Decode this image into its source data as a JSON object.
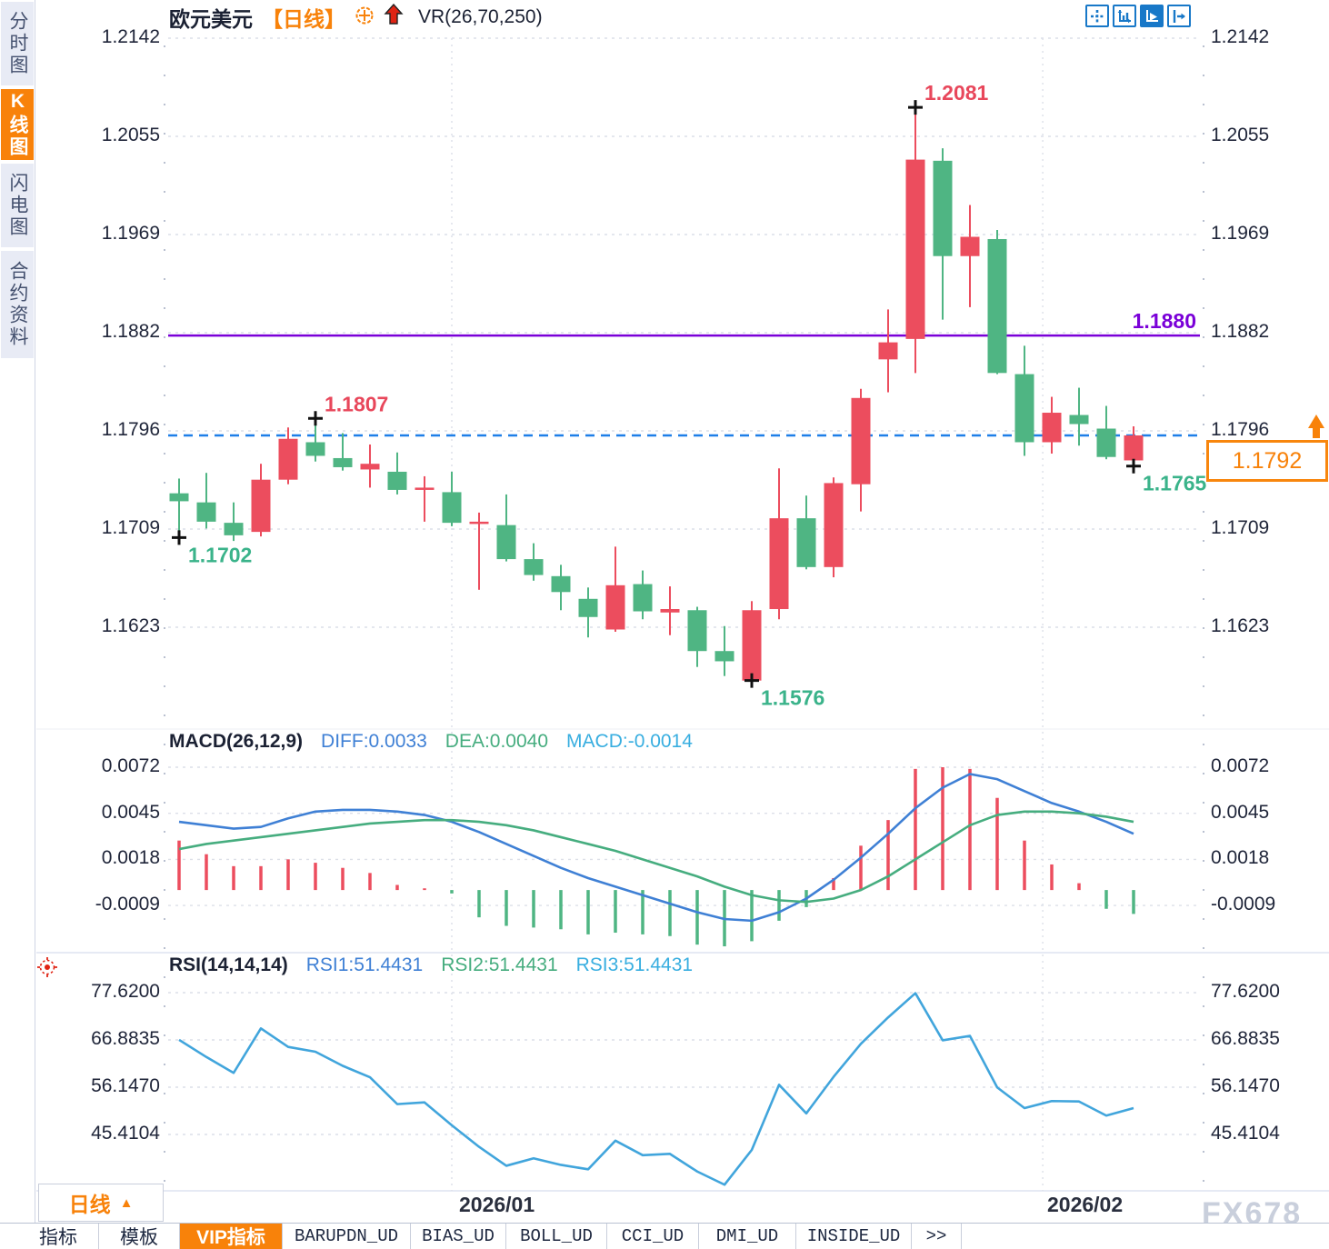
{
  "header": {
    "symbol": "欧元美元",
    "period_tag": "【日线】",
    "vr_label": "VR(26,70,250)"
  },
  "toolbar": {
    "icons": [
      "move-crosshair",
      "axis-scale",
      "axis-play",
      "exit-panel"
    ],
    "active_icon": "axis-play"
  },
  "sidebar": {
    "items": [
      {
        "label": "分时图",
        "active": false
      },
      {
        "label": "K线图",
        "active": true
      },
      {
        "label": "闪电图",
        "active": false
      },
      {
        "label": "合约资料",
        "active": false
      }
    ]
  },
  "colors": {
    "up": "#ec4d5e",
    "down": "#4fb583",
    "accent_orange": "#f8820a",
    "diff_blue": "#3f80d5",
    "dea_green": "#46ad7f",
    "macd_cyan": "#38aee0",
    "rsi_line": "#41a5dc",
    "purple_level": "#7a00d8",
    "current_price_line": "#1e7fe8",
    "toolbar_blue": "#1878c8",
    "high_label": "#e8475b",
    "low_label": "#3ab38a",
    "marker": "#111111",
    "grid": "#dcdfe8"
  },
  "current_price": {
    "display": "1.1792",
    "price": 1.1792
  },
  "x_axis": {
    "gridlines": [
      {
        "index": 10.0,
        "label": "2026/01"
      },
      {
        "index": 31.67,
        "label": "2026/02"
      }
    ]
  },
  "chart_data": [
    {
      "type": "candlestick",
      "title": "欧元美元 日线 (EUR/USD daily)",
      "y_tick_labels": [
        "1.2142",
        "1.2055",
        "1.1969",
        "1.1882",
        "1.1796",
        "1.1709",
        "1.1623"
      ],
      "y_ticks": [
        1.2142,
        1.2055,
        1.1969,
        1.1882,
        1.1796,
        1.1709,
        1.1623
      ],
      "level_line": {
        "value": 1.188,
        "label": "1.1880"
      },
      "candles": [
        [
          1.1741,
          1.1754,
          1.1702,
          1.1734
        ],
        [
          1.1733,
          1.1759,
          1.171,
          1.1716
        ],
        [
          1.1715,
          1.1733,
          1.1699,
          1.1704
        ],
        [
          1.1707,
          1.1767,
          1.1703,
          1.1753
        ],
        [
          1.1753,
          1.1799,
          1.1749,
          1.1789
        ],
        [
          1.1786,
          1.1807,
          1.1769,
          1.1774
        ],
        [
          1.1772,
          1.1794,
          1.1761,
          1.1764
        ],
        [
          1.1762,
          1.1784,
          1.1746,
          1.1767
        ],
        [
          1.176,
          1.1777,
          1.174,
          1.1744
        ],
        [
          1.1744,
          1.1756,
          1.1716,
          1.1746
        ],
        [
          1.1742,
          1.176,
          1.1712,
          1.1715
        ],
        [
          1.1714,
          1.1724,
          1.1656,
          1.1716
        ],
        [
          1.1713,
          1.174,
          1.1681,
          1.1683
        ],
        [
          1.1683,
          1.1697,
          1.1664,
          1.1669
        ],
        [
          1.1668,
          1.1678,
          1.1638,
          1.1654
        ],
        [
          1.1648,
          1.1658,
          1.1614,
          1.1632
        ],
        [
          1.1621,
          1.1694,
          1.1619,
          1.166
        ],
        [
          1.1661,
          1.1673,
          1.163,
          1.1637
        ],
        [
          1.1636,
          1.1659,
          1.1616,
          1.1639
        ],
        [
          1.1638,
          1.1641,
          1.1588,
          1.1602
        ],
        [
          1.1602,
          1.1624,
          1.158,
          1.1593
        ],
        [
          1.1576,
          1.1646,
          1.1576,
          1.1638
        ],
        [
          1.1639,
          1.1763,
          1.163,
          1.1719
        ],
        [
          1.1719,
          1.1739,
          1.1674,
          1.1676
        ],
        [
          1.1676,
          1.1755,
          1.1667,
          1.175
        ],
        [
          1.1749,
          1.1833,
          1.1725,
          1.1825
        ],
        [
          1.1859,
          1.1903,
          1.183,
          1.1874
        ],
        [
          1.1877,
          1.2081,
          1.1847,
          1.2035
        ],
        [
          1.2034,
          1.2045,
          1.1894,
          1.195
        ],
        [
          1.195,
          1.1995,
          1.1905,
          1.1967
        ],
        [
          1.1965,
          1.1973,
          1.1846,
          1.1847
        ],
        [
          1.1846,
          1.1871,
          1.1774,
          1.1786
        ],
        [
          1.1786,
          1.1826,
          1.1776,
          1.1812
        ],
        [
          1.181,
          1.1834,
          1.1783,
          1.1802
        ],
        [
          1.1798,
          1.1818,
          1.1771,
          1.1773
        ],
        [
          1.177,
          1.18,
          1.1765,
          1.1792
        ]
      ],
      "annotations": [
        {
          "candle": 0,
          "price": 1.1702,
          "text": "1.1702",
          "kind": "low",
          "placement": "below"
        },
        {
          "candle": 5,
          "price": 1.1807,
          "text": "1.1807",
          "kind": "high",
          "placement": "above"
        },
        {
          "candle": 21,
          "price": 1.1576,
          "text": "1.1576",
          "kind": "low",
          "placement": "below"
        },
        {
          "candle": 27,
          "price": 1.2081,
          "text": "1.2081",
          "kind": "high",
          "placement": "above"
        },
        {
          "candle": 35,
          "price": 1.1765,
          "text": "1.1765",
          "kind": "low",
          "placement": "below"
        }
      ]
    },
    {
      "type": "bar",
      "name": "MACD",
      "params": "MACD(26,12,9)",
      "readouts": [
        {
          "text": "DIFF:0.0033",
          "color_key": "diff_blue"
        },
        {
          "text": "DEA:0.0040",
          "color_key": "dea_green"
        },
        {
          "text": "MACD:-0.0014",
          "color_key": "macd_cyan"
        }
      ],
      "y_tick_labels": [
        "0.0072",
        "0.0045",
        "0.0018",
        "-0.0009"
      ],
      "y_ticks": [
        0.0072,
        0.0045,
        0.0018,
        -0.0009
      ],
      "histogram": [
        0.0029,
        0.0021,
        0.0014,
        0.0014,
        0.0018,
        0.0016,
        0.0013,
        0.001,
        0.0003,
        0.0001,
        -0.0002,
        -0.0016,
        -0.0021,
        -0.0022,
        -0.0023,
        -0.0026,
        -0.0025,
        -0.0026,
        -0.0027,
        -0.0032,
        -0.0033,
        -0.003,
        -0.0018,
        -0.001,
        0.0007,
        0.0026,
        0.0041,
        0.0071,
        0.0072,
        0.0071,
        0.0054,
        0.0029,
        0.0015,
        0.0004,
        -0.0011,
        -0.0014
      ],
      "series": [
        {
          "name": "DIFF",
          "values": [
            0.004,
            0.0038,
            0.0036,
            0.0037,
            0.0042,
            0.0046,
            0.0047,
            0.0047,
            0.0046,
            0.0044,
            0.004,
            0.0034,
            0.0027,
            0.002,
            0.0013,
            0.0007,
            0.0002,
            -0.0003,
            -0.0008,
            -0.0013,
            -0.0017,
            -0.0018,
            -0.0013,
            -0.0005,
            0.0006,
            0.0019,
            0.0033,
            0.0048,
            0.006,
            0.0068,
            0.0065,
            0.0058,
            0.0051,
            0.0046,
            0.004,
            0.0033
          ]
        },
        {
          "name": "DEA",
          "values": [
            0.0024,
            0.0027,
            0.0029,
            0.0031,
            0.0033,
            0.0035,
            0.0037,
            0.0039,
            0.004,
            0.0041,
            0.0041,
            0.004,
            0.0038,
            0.0035,
            0.0031,
            0.0027,
            0.0023,
            0.0018,
            0.0013,
            0.0008,
            0.0002,
            -0.0003,
            -0.0006,
            -0.0007,
            -0.0005,
            0.0,
            0.0008,
            0.0018,
            0.0028,
            0.0038,
            0.0044,
            0.0046,
            0.0046,
            0.0045,
            0.0043,
            0.004
          ]
        }
      ]
    },
    {
      "type": "line",
      "name": "RSI",
      "params": "RSI(14,14,14)",
      "readouts": [
        {
          "text": "RSI1:51.4431",
          "color_key": "diff_blue"
        },
        {
          "text": "RSI2:51.4431",
          "color_key": "dea_green"
        },
        {
          "text": "RSI3:51.4431",
          "color_key": "macd_cyan"
        }
      ],
      "y_tick_labels": [
        "77.6200",
        "66.8835",
        "56.1470",
        "45.4104"
      ],
      "y_ticks": [
        77.62,
        66.8835,
        56.147,
        45.4104
      ],
      "series": [
        {
          "name": "RSI",
          "values": [
            66.9,
            63.0,
            59.4,
            69.5,
            65.3,
            64.2,
            61.0,
            58.4,
            52.3,
            52.7,
            47.5,
            42.6,
            38.3,
            40.0,
            38.5,
            37.5,
            44.0,
            40.7,
            41.0,
            37.0,
            34.0,
            41.9,
            56.7,
            50.2,
            58.5,
            66.0,
            72.0,
            77.5,
            66.8,
            67.8,
            56.1,
            51.4,
            53.0,
            52.9,
            49.7,
            51.4
          ]
        }
      ]
    }
  ],
  "bottom": {
    "timeframe_label": "日线",
    "timeframe_arrow": "▲",
    "tabs": [
      {
        "label": "指标",
        "active": false,
        "mono": false
      },
      {
        "label": "模板",
        "active": false,
        "mono": false
      },
      {
        "label": "VIP指标",
        "active": true,
        "mono": false
      },
      {
        "label": "BARUPDN_UD",
        "active": false,
        "mono": true
      },
      {
        "label": "BIAS_UD",
        "active": false,
        "mono": true
      },
      {
        "label": "BOLL_UD",
        "active": false,
        "mono": true
      },
      {
        "label": "CCI_UD",
        "active": false,
        "mono": true
      },
      {
        "label": "DMI_UD",
        "active": false,
        "mono": true
      },
      {
        "label": "INSIDE_UD",
        "active": false,
        "mono": true
      },
      {
        "label": ">>",
        "active": false,
        "mono": true
      }
    ]
  },
  "watermark": "FX678"
}
